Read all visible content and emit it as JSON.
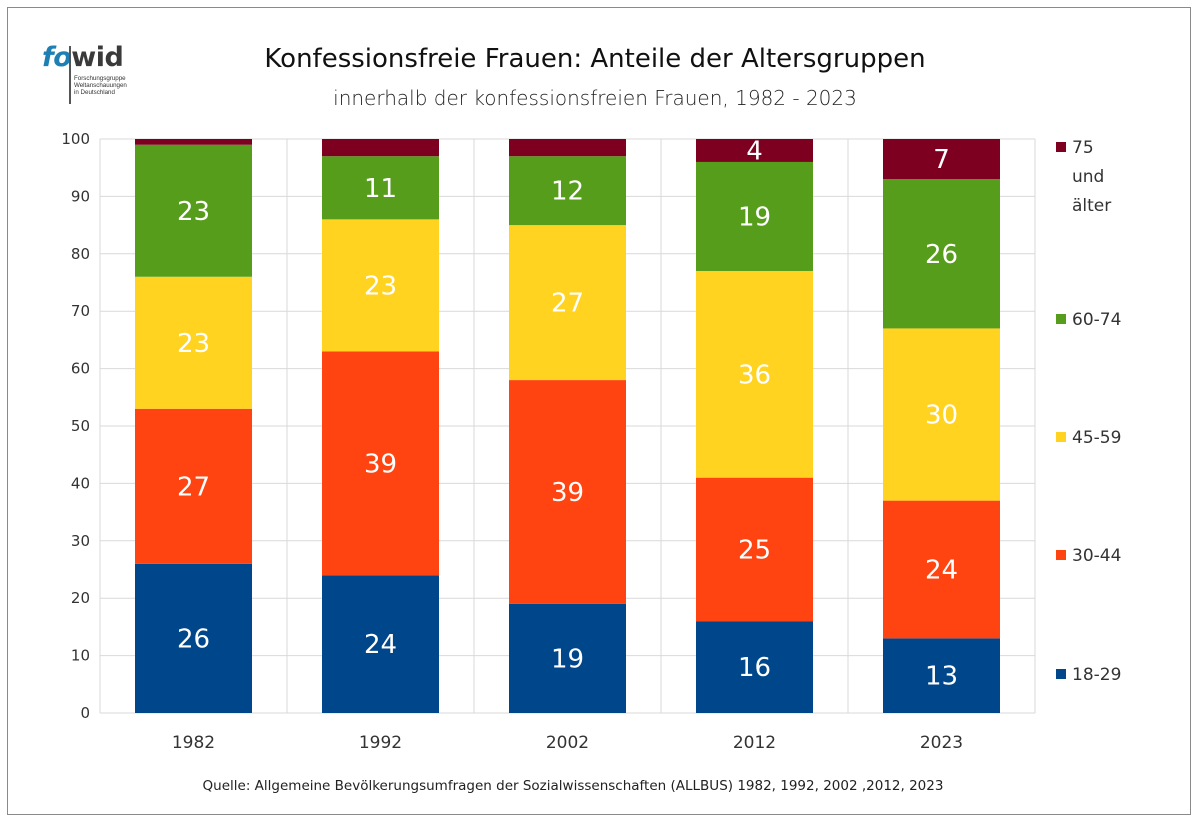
{
  "logo": {
    "word_fo": "fo",
    "word_wid": "wid",
    "line1": "Forschungsgruppe",
    "line2": "Weltanschauungen",
    "line3": "in Deutschland"
  },
  "colors": {
    "18-29": "#00468b",
    "30-44": "#ff4411",
    "45-59": "#ffd320",
    "60-74": "#579d1c",
    "75 und älter": "#7e0021",
    "grid": "#d9d9d9",
    "axis_text": "#333333"
  },
  "chart_data": {
    "type": "bar",
    "stacked": true,
    "title": "Konfessionsfreie Frauen: Anteile der Altersgruppen",
    "subtitle": "innerhalb der konfessionsfreien Frauen, 1982 - 2023",
    "categories": [
      "1982",
      "1992",
      "2002",
      "2012",
      "2023"
    ],
    "ylim": [
      0,
      100
    ],
    "yticks": [
      0,
      10,
      20,
      30,
      40,
      50,
      60,
      70,
      80,
      90,
      100
    ],
    "grid": true,
    "legend_position": "right",
    "series": [
      {
        "name": "18-29",
        "values": [
          26,
          24,
          19,
          16,
          13
        ],
        "labels": [
          "26",
          "24",
          "19",
          "16",
          "13"
        ]
      },
      {
        "name": "30-44",
        "values": [
          27,
          39,
          39,
          25,
          24
        ],
        "labels": [
          "27",
          "39",
          "39",
          "25",
          "24"
        ]
      },
      {
        "name": "45-59",
        "values": [
          23,
          23,
          27,
          36,
          30
        ],
        "labels": [
          "23",
          "23",
          "27",
          "36",
          "30"
        ]
      },
      {
        "name": "60-74",
        "values": [
          23,
          11,
          12,
          19,
          26
        ],
        "labels": [
          "23",
          "11",
          "12",
          "19",
          "26"
        ]
      },
      {
        "name": "75 und älter",
        "values": [
          1,
          3,
          3,
          4,
          7
        ],
        "labels": [
          "",
          "",
          "",
          "4",
          "7"
        ]
      }
    ],
    "legend": [
      {
        "series": "75 und älter",
        "lines": [
          "75",
          "und",
          "älter"
        ]
      },
      {
        "series": "60-74",
        "lines": [
          "60-74"
        ]
      },
      {
        "series": "45-59",
        "lines": [
          "45-59"
        ]
      },
      {
        "series": "30-44",
        "lines": [
          "30-44"
        ]
      },
      {
        "series": "18-29",
        "lines": [
          "18-29"
        ]
      }
    ]
  },
  "source": "Quelle: Allgemeine Bevölkerungsumfragen der Sozialwissenschaften (ALLBUS) 1982, 1992, 2002 ,2012, 2023"
}
